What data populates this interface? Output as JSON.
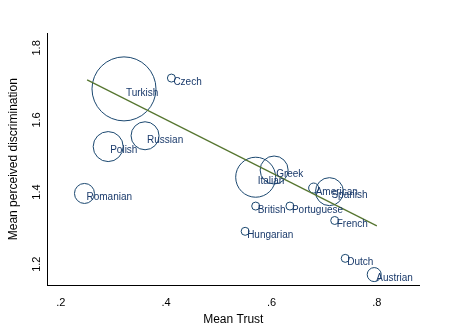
{
  "chart_data": {
    "type": "bubble",
    "x_label": "Mean Trust",
    "y_label": "Mean perceived discrimination",
    "labels": [
      "Turkish",
      "Czech",
      "Russian",
      "Polish",
      "Romanian",
      "Italian",
      "Greek",
      "American",
      "Spanish",
      "British",
      "Portuguese",
      "French",
      "Hungarian",
      "Dutch",
      "Austrian"
    ],
    "x": [
      0.32,
      0.41,
      0.36,
      0.29,
      0.245,
      0.57,
      0.605,
      0.68,
      0.71,
      0.57,
      0.635,
      0.72,
      0.55,
      0.74,
      0.795
    ],
    "y": [
      1.665,
      1.695,
      1.535,
      1.505,
      1.375,
      1.42,
      1.44,
      1.39,
      1.38,
      1.34,
      1.34,
      1.3,
      1.27,
      1.195,
      1.15
    ],
    "sizes": [
      32,
      4,
      14,
      15,
      10,
      20,
      14,
      5,
      14,
      4,
      4,
      4,
      4,
      4,
      7
    ],
    "color": "#1a476f",
    "trend_line": {
      "x": [
        0.25,
        0.8
      ],
      "y": [
        1.69,
        1.285
      ],
      "color": "#55752f"
    },
    "xlim": [
      0.175,
      0.88
    ],
    "ylim": [
      1.12,
      1.82
    ],
    "xticks": [
      {
        "value": 0.2,
        "label": ".2"
      },
      {
        "value": 0.4,
        "label": ".4"
      },
      {
        "value": 0.6,
        "label": ".6"
      },
      {
        "value": 0.8,
        "label": ".8"
      }
    ],
    "yticks": [
      1.2,
      1.4,
      1.6,
      1.8
    ],
    "grid": false
  }
}
